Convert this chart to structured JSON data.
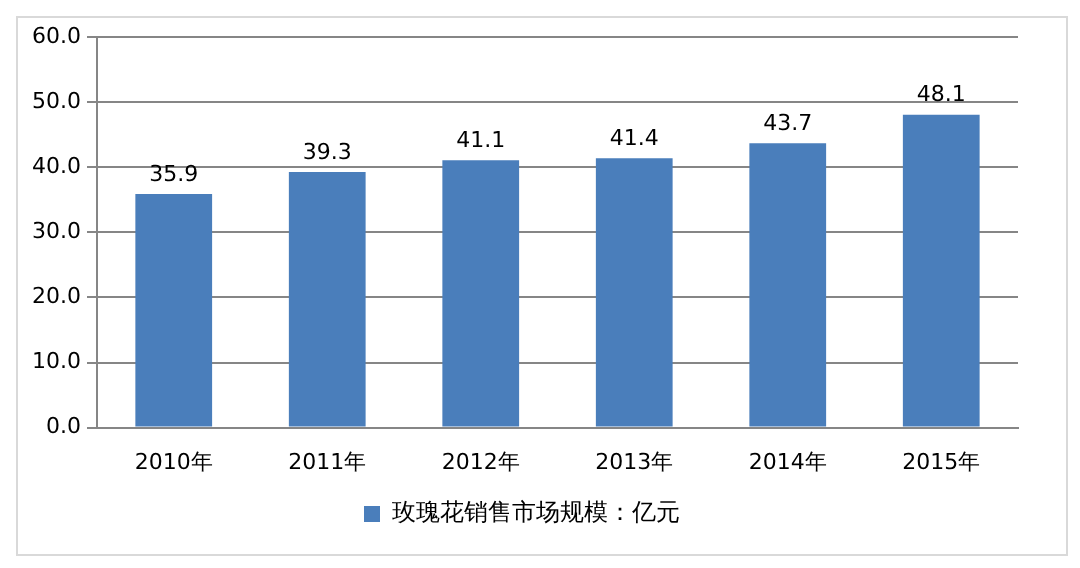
{
  "chart_data": {
    "type": "bar",
    "categories": [
      "2010年",
      "2011年",
      "2012年",
      "2013年",
      "2014年",
      "2015年"
    ],
    "series": [
      {
        "name": "玫瑰花销售市场规模：亿元",
        "color": "#4a7ebb",
        "values": [
          35.9,
          39.3,
          41.1,
          41.4,
          43.7,
          48.1
        ]
      }
    ],
    "ylim": [
      0,
      60
    ],
    "yticks": [
      {
        "value": 0,
        "label": "0.0"
      },
      {
        "value": 10,
        "label": "10.0"
      },
      {
        "value": 20,
        "label": "20.0"
      },
      {
        "value": 30,
        "label": "30.0"
      },
      {
        "value": 40,
        "label": "40.0"
      },
      {
        "value": 50,
        "label": "50.0"
      },
      {
        "value": 60,
        "label": "60.0"
      }
    ],
    "grid": "y",
    "legend": "bottom",
    "data_labels": true
  }
}
